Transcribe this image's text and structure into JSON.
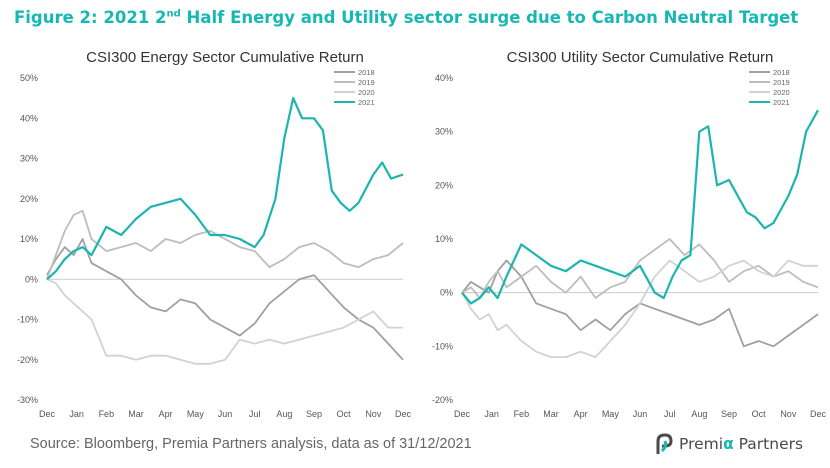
{
  "figure": {
    "title_prefix": "Figure 2: 2021 2",
    "title_sup": "nd",
    "title_suffix": " Half Energy and Utility sector surge due to Carbon Neutral Target",
    "source": "Source: Bloomberg, Premia Partners analysis, data as of 31/12/2021",
    "logo": {
      "part1": "Premi",
      "alpha": "α",
      "part2": " Partners"
    }
  },
  "colors": {
    "title": "#17b8b3",
    "s2018": "#a0a0a0",
    "s2019": "#bdbdbd",
    "s2020": "#d2d2d2",
    "s2021": "#1cb5ad",
    "zero_line": "#cccccc",
    "tick_text": "#555555"
  },
  "chart_data": [
    {
      "type": "line",
      "title": "CSI300 Energy Sector Cumulative Return",
      "x_tick_labels": [
        "Dec",
        "Jan",
        "Feb",
        "Mar",
        "Apr",
        "May",
        "Jun",
        "Jul",
        "Aug",
        "Sep",
        "Oct",
        "Nov",
        "Dec"
      ],
      "y_tick_labels": [
        "-30%",
        "-20%",
        "-10%",
        "0%",
        "10%",
        "20%",
        "30%",
        "40%",
        "50%"
      ],
      "ylim": [
        -30,
        50
      ],
      "y_unit": "%",
      "legend_position": "top-right",
      "series": [
        {
          "name": "2018",
          "x": [
            0,
            0.3,
            0.6,
            0.9,
            1.2,
            1.5,
            2.0,
            2.5,
            3.0,
            3.5,
            4.0,
            4.5,
            5.0,
            5.5,
            6.0,
            6.5,
            7.0,
            7.5,
            8.0,
            8.5,
            9.0,
            9.5,
            10.0,
            10.5,
            11.0,
            11.5,
            12.0
          ],
          "values": [
            1,
            5,
            8,
            6,
            10,
            4,
            2,
            0,
            -4,
            -7,
            -8,
            -5,
            -6,
            -10,
            -12,
            -14,
            -11,
            -6,
            -3,
            0,
            1,
            -3,
            -7,
            -10,
            -12,
            -16,
            -20
          ]
        },
        {
          "name": "2019",
          "x": [
            0,
            0.3,
            0.6,
            0.9,
            1.2,
            1.5,
            2.0,
            2.5,
            3.0,
            3.5,
            4.0,
            4.5,
            5.0,
            5.5,
            6.0,
            6.5,
            7.0,
            7.5,
            8.0,
            8.5,
            9.0,
            9.5,
            10.0,
            10.5,
            11.0,
            11.5,
            12.0
          ],
          "values": [
            0,
            6,
            12,
            16,
            17,
            10,
            7,
            8,
            9,
            7,
            10,
            9,
            11,
            12,
            10,
            8,
            7,
            3,
            5,
            8,
            9,
            7,
            4,
            3,
            5,
            6,
            9
          ]
        },
        {
          "name": "2020",
          "x": [
            0,
            0.3,
            0.6,
            0.9,
            1.2,
            1.5,
            2.0,
            2.5,
            3.0,
            3.5,
            4.0,
            4.5,
            5.0,
            5.5,
            6.0,
            6.5,
            7.0,
            7.5,
            8.0,
            8.5,
            9.0,
            9.5,
            10.0,
            10.5,
            11.0,
            11.5,
            12.0
          ],
          "values": [
            0,
            -1,
            -4,
            -6,
            -8,
            -10,
            -19,
            -19,
            -20,
            -19,
            -19,
            -20,
            -21,
            -21,
            -20,
            -15,
            -16,
            -15,
            -16,
            -15,
            -14,
            -13,
            -12,
            -10,
            -8,
            -12,
            -12
          ]
        },
        {
          "name": "2021",
          "x": [
            0,
            0.3,
            0.6,
            0.9,
            1.2,
            1.5,
            2.0,
            2.5,
            3.0,
            3.5,
            4.0,
            4.5,
            5.0,
            5.5,
            6.0,
            6.5,
            7.0,
            7.3,
            7.7,
            8.0,
            8.3,
            8.6,
            9.0,
            9.3,
            9.6,
            9.9,
            10.2,
            10.5,
            11.0,
            11.3,
            11.6,
            12.0
          ],
          "values": [
            0,
            2,
            5,
            7,
            8,
            6,
            13,
            11,
            15,
            18,
            19,
            20,
            16,
            11,
            11,
            10,
            8,
            11,
            20,
            35,
            45,
            40,
            40,
            37,
            22,
            19,
            17,
            19,
            26,
            29,
            25,
            26
          ]
        }
      ]
    },
    {
      "type": "line",
      "title": "CSI300 Utility Sector Cumulative Return",
      "x_tick_labels": [
        "Dec",
        "Jan",
        "Feb",
        "Mar",
        "Apr",
        "May",
        "Jun",
        "Jul",
        "Aug",
        "Sep",
        "Oct",
        "Nov",
        "Dec"
      ],
      "y_tick_labels": [
        "-20%",
        "-10%",
        "0%",
        "10%",
        "20%",
        "30%",
        "40%"
      ],
      "ylim": [
        -20,
        40
      ],
      "y_unit": "%",
      "legend_position": "top-right",
      "series": [
        {
          "name": "2018",
          "x": [
            0,
            0.3,
            0.6,
            0.9,
            1.2,
            1.5,
            2.0,
            2.5,
            3.0,
            3.5,
            4.0,
            4.5,
            5.0,
            5.5,
            6.0,
            6.5,
            7.0,
            7.5,
            8.0,
            8.5,
            9.0,
            9.5,
            10.0,
            10.5,
            11.0,
            11.5,
            12.0
          ],
          "values": [
            0,
            2,
            1,
            0,
            4,
            6,
            3,
            -2,
            -3,
            -4,
            -7,
            -5,
            -7,
            -4,
            -2,
            -3,
            -4,
            -5,
            -6,
            -5,
            -3,
            -10,
            -9,
            -10,
            -8,
            -6,
            -4
          ]
        },
        {
          "name": "2019",
          "x": [
            0,
            0.3,
            0.6,
            0.9,
            1.2,
            1.5,
            2.0,
            2.5,
            3.0,
            3.5,
            4.0,
            4.5,
            5.0,
            5.5,
            6.0,
            6.5,
            7.0,
            7.5,
            8.0,
            8.5,
            9.0,
            9.5,
            10.0,
            10.5,
            11.0,
            11.5,
            12.0
          ],
          "values": [
            0,
            1,
            -1,
            2,
            4,
            1,
            3,
            5,
            2,
            0,
            3,
            -1,
            1,
            2,
            6,
            8,
            10,
            7,
            9,
            6,
            2,
            4,
            5,
            3,
            4,
            2,
            1
          ]
        },
        {
          "name": "2020",
          "x": [
            0,
            0.3,
            0.6,
            0.9,
            1.2,
            1.5,
            2.0,
            2.5,
            3.0,
            3.5,
            4.0,
            4.5,
            5.0,
            5.5,
            6.0,
            6.5,
            7.0,
            7.5,
            8.0,
            8.5,
            9.0,
            9.5,
            10.0,
            10.5,
            11.0,
            11.5,
            12.0
          ],
          "values": [
            0,
            -3,
            -5,
            -4,
            -7,
            -6,
            -9,
            -11,
            -12,
            -12,
            -11,
            -12,
            -9,
            -6,
            -2,
            3,
            6,
            4,
            2,
            3,
            5,
            6,
            4,
            3,
            6,
            5,
            5
          ]
        },
        {
          "name": "2021",
          "x": [
            0,
            0.3,
            0.6,
            0.9,
            1.2,
            1.5,
            2.0,
            2.5,
            3.0,
            3.5,
            4.0,
            4.5,
            5.0,
            5.5,
            6.0,
            6.5,
            6.8,
            7.1,
            7.4,
            7.7,
            8.0,
            8.3,
            8.6,
            9.0,
            9.3,
            9.6,
            9.9,
            10.2,
            10.5,
            11.0,
            11.3,
            11.6,
            12.0
          ],
          "values": [
            0,
            -2,
            -1,
            1,
            -1,
            3,
            9,
            7,
            5,
            4,
            6,
            5,
            4,
            3,
            5,
            0,
            -1,
            3,
            6,
            7,
            30,
            31,
            20,
            21,
            18,
            15,
            14,
            12,
            13,
            18,
            22,
            30,
            34
          ]
        }
      ]
    }
  ]
}
